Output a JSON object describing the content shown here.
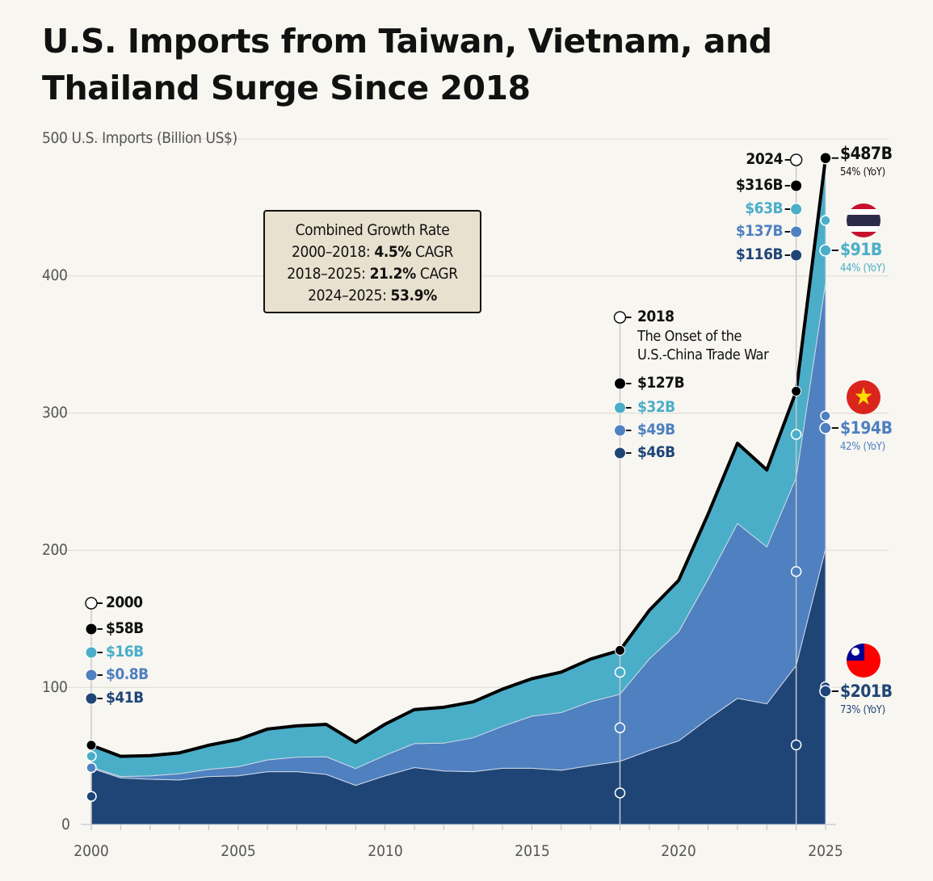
{
  "title": "U.S. Imports from Taiwan, Vietnam, and Thailand Surge Since 2018",
  "chart_data": {
    "type": "area",
    "stacked": true,
    "title": "U.S. Imports from Taiwan, Vietnam, and Thailand Surge Since 2018",
    "ylabel": "U.S. Imports (Billion US$)",
    "ylim": [
      0,
      500
    ],
    "yticks": [
      "0",
      "100",
      "200",
      "300",
      "400",
      "500"
    ],
    "xlim": [
      2000,
      2025
    ],
    "xticks": [
      "2000",
      "2005",
      "2010",
      "2015",
      "2020",
      "2025"
    ],
    "grid": true,
    "x": [
      2000,
      2001,
      2002,
      2003,
      2004,
      2005,
      2006,
      2007,
      2008,
      2009,
      2010,
      2011,
      2012,
      2013,
      2014,
      2015,
      2016,
      2017,
      2018,
      2019,
      2020,
      2021,
      2022,
      2023,
      2024,
      2025
    ],
    "series": [
      {
        "name": "Taiwan",
        "color": "#1f4577",
        "values": [
          41,
          34,
          33,
          32.5,
          35,
          35.5,
          38.5,
          38.5,
          36.5,
          28.5,
          35.5,
          41.5,
          39,
          38.5,
          41,
          41,
          39.5,
          43,
          46,
          54,
          61,
          77,
          92,
          88,
          116,
          201
        ]
      },
      {
        "name": "Vietnam",
        "color": "#4f80c0",
        "values": [
          0.8,
          1,
          2.4,
          4.5,
          5.2,
          6.6,
          8.6,
          10.6,
          12.9,
          12.3,
          14.9,
          17.5,
          20.3,
          24.7,
          30.6,
          38,
          42.1,
          46.5,
          49,
          66.7,
          79.6,
          101.9,
          127.5,
          114.4,
          137,
          194
        ]
      },
      {
        "name": "Thailand",
        "color": "#4aaec8",
        "values": [
          16,
          14.7,
          14.8,
          15.2,
          17.6,
          19.9,
          22.5,
          22.8,
          23.6,
          19.1,
          22.7,
          24.8,
          26.2,
          26.2,
          27.1,
          27.3,
          29.5,
          31.1,
          32,
          35.5,
          37.5,
          47.4,
          58.5,
          56.2,
          63,
          91
        ]
      }
    ],
    "total_color": "#000000"
  },
  "growth_box": {
    "heading": "Combined Growth Rate",
    "rows": [
      {
        "period": "2000–2018: ",
        "value": "4.5%",
        "suffix": " CAGR"
      },
      {
        "period": "2018–2025: ",
        "value": "21.2%",
        "suffix": " CAGR"
      },
      {
        "period": "2024–2025: ",
        "value": "53.9%",
        "suffix": ""
      }
    ]
  },
  "annotations": {
    "y2000": {
      "year": "2000",
      "total": "$58B",
      "thailand": "$16B",
      "vietnam": "$0.8B",
      "taiwan": "$41B"
    },
    "y2018": {
      "year": "2018",
      "note1": "The Onset of the",
      "note2": "U.S.-China Trade War",
      "total": "$127B",
      "thailand": "$32B",
      "vietnam": "$49B",
      "taiwan": "$46B"
    },
    "y2024": {
      "year": "2024",
      "total": "$316B",
      "thailand": "$63B",
      "vietnam": "$137B",
      "taiwan": "$116B"
    },
    "y2025": {
      "total": "$487B",
      "total_yoy": "54% (YoY)",
      "thailand": "$91B",
      "thailand_yoy": "44% (YoY)",
      "vietnam": "$194B",
      "vietnam_yoy": "42% (YoY)",
      "taiwan": "$201B",
      "taiwan_yoy": "73% (YoY)"
    }
  },
  "flags": [
    "thailand-flag",
    "vietnam-flag",
    "taiwan-flag"
  ]
}
